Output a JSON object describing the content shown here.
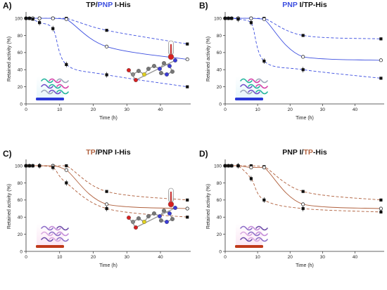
{
  "colors": {
    "blue": "#3d4fe0",
    "brown": "#b0603d",
    "black": "#111111",
    "protein_blue_base": "#2a38d8",
    "protein_red_base": "#c03a1a"
  },
  "chart_data": [
    {
      "panel": "A)",
      "type": "line",
      "title_segments": [
        {
          "text": "TP/",
          "color": "#111111"
        },
        {
          "text": "PNP",
          "color": "#3d4fe0"
        },
        {
          "text": " I-His",
          "color": "#111111"
        }
      ],
      "xlabel": "Time (h)",
      "ylabel": "Retained activity (%)",
      "xlim": [
        0,
        49
      ],
      "ylim": [
        0,
        105
      ],
      "xticks": [
        0,
        10,
        20,
        30,
        40
      ],
      "yticks": [
        0,
        20,
        40,
        60,
        80,
        100
      ],
      "fit_color": "#3d4fe0",
      "series": [
        {
          "marker": "filled-square",
          "style": "dash",
          "points": [
            [
              0,
              100
            ],
            [
              1,
              100
            ],
            [
              2,
              100
            ],
            [
              4,
              100
            ],
            [
              8,
              100
            ],
            [
              12,
              100
            ],
            [
              24,
              86
            ],
            [
              48,
              70
            ]
          ]
        },
        {
          "marker": "open-circle",
          "style": "solid",
          "points": [
            [
              0,
              100
            ],
            [
              1,
              100
            ],
            [
              2,
              100
            ],
            [
              4,
              100
            ],
            [
              8,
              100
            ],
            [
              12,
              99
            ],
            [
              24,
              67
            ],
            [
              48,
              52
            ]
          ]
        },
        {
          "marker": "filled-square",
          "style": "dash",
          "points": [
            [
              0,
              100
            ],
            [
              1,
              100
            ],
            [
              2,
              99
            ],
            [
              4,
              95
            ],
            [
              8,
              88
            ],
            [
              12,
              46
            ],
            [
              24,
              34
            ],
            [
              48,
              20
            ]
          ]
        }
      ],
      "inset": "thermometer-and-nucleoside",
      "protein_base_color": "#2a38d8"
    },
    {
      "panel": "B)",
      "type": "line",
      "title_segments": [
        {
          "text": "PNP",
          "color": "#3d4fe0"
        },
        {
          "text": " I/TP-His",
          "color": "#111111"
        }
      ],
      "xlabel": "Time (h)",
      "ylabel": "Retained activity (%)",
      "xlim": [
        0,
        49
      ],
      "ylim": [
        0,
        105
      ],
      "xticks": [
        0,
        10,
        20,
        30,
        40
      ],
      "yticks": [
        0,
        20,
        40,
        60,
        80,
        100
      ],
      "fit_color": "#3d4fe0",
      "series": [
        {
          "marker": "filled-square",
          "style": "dash",
          "points": [
            [
              0,
              100
            ],
            [
              1,
              100
            ],
            [
              2,
              100
            ],
            [
              4,
              100
            ],
            [
              8,
              100
            ],
            [
              12,
              100
            ],
            [
              24,
              80
            ],
            [
              48,
              76
            ]
          ]
        },
        {
          "marker": "open-circle",
          "style": "solid",
          "points": [
            [
              0,
              100
            ],
            [
              1,
              100
            ],
            [
              2,
              100
            ],
            [
              4,
              100
            ],
            [
              8,
              100
            ],
            [
              12,
              99
            ],
            [
              24,
              55
            ],
            [
              48,
              51
            ]
          ]
        },
        {
          "marker": "filled-square",
          "style": "dash",
          "points": [
            [
              0,
              100
            ],
            [
              1,
              100
            ],
            [
              2,
              100
            ],
            [
              4,
              99
            ],
            [
              8,
              95
            ],
            [
              12,
              50
            ],
            [
              24,
              40
            ],
            [
              48,
              30
            ]
          ]
        }
      ],
      "inset": null,
      "protein_base_color": "#2a38d8"
    },
    {
      "panel": "C)",
      "type": "line",
      "title_segments": [
        {
          "text": "TP",
          "color": "#b0603d"
        },
        {
          "text": "/PNP I-His",
          "color": "#111111"
        }
      ],
      "xlabel": "Time (h)",
      "ylabel": "Retained activity (%)",
      "xlim": [
        0,
        49
      ],
      "ylim": [
        0,
        105
      ],
      "xticks": [
        0,
        10,
        20,
        30,
        40
      ],
      "yticks": [
        0,
        20,
        40,
        60,
        80,
        100
      ],
      "fit_color": "#b0603d",
      "series": [
        {
          "marker": "filled-square",
          "style": "dash",
          "points": [
            [
              0,
              100
            ],
            [
              1,
              100
            ],
            [
              2,
              100
            ],
            [
              4,
              100
            ],
            [
              8,
              100
            ],
            [
              12,
              100
            ],
            [
              24,
              70
            ],
            [
              48,
              60
            ]
          ]
        },
        {
          "marker": "open-circle",
          "style": "solid",
          "points": [
            [
              0,
              100
            ],
            [
              1,
              100
            ],
            [
              2,
              100
            ],
            [
              4,
              100
            ],
            [
              8,
              100
            ],
            [
              12,
              95
            ],
            [
              24,
              55
            ],
            [
              48,
              50
            ]
          ]
        },
        {
          "marker": "filled-square",
          "style": "dash",
          "points": [
            [
              0,
              100
            ],
            [
              1,
              100
            ],
            [
              2,
              100
            ],
            [
              4,
              100
            ],
            [
              8,
              98
            ],
            [
              12,
              80
            ],
            [
              24,
              50
            ],
            [
              48,
              40
            ]
          ]
        }
      ],
      "inset": "thermometer-and-nucleoside",
      "protein_base_color": "#c03a1a"
    },
    {
      "panel": "D)",
      "type": "line",
      "title_segments": [
        {
          "text": "PNP I/",
          "color": "#111111"
        },
        {
          "text": "TP",
          "color": "#b0603d"
        },
        {
          "text": "-His",
          "color": "#111111"
        }
      ],
      "xlabel": "Time (h)",
      "ylabel": "Retained activity (%)",
      "xlim": [
        0,
        49
      ],
      "ylim": [
        0,
        105
      ],
      "xticks": [
        0,
        10,
        20,
        30,
        40
      ],
      "yticks": [
        0,
        20,
        40,
        60,
        80,
        100
      ],
      "fit_color": "#b0603d",
      "series": [
        {
          "marker": "filled-square",
          "style": "dash",
          "points": [
            [
              0,
              100
            ],
            [
              1,
              100
            ],
            [
              2,
              100
            ],
            [
              4,
              100
            ],
            [
              8,
              100
            ],
            [
              12,
              99
            ],
            [
              24,
              70
            ],
            [
              48,
              60
            ]
          ]
        },
        {
          "marker": "open-circle",
          "style": "solid",
          "points": [
            [
              0,
              100
            ],
            [
              1,
              100
            ],
            [
              2,
              100
            ],
            [
              4,
              100
            ],
            [
              8,
              98
            ],
            [
              12,
              98
            ],
            [
              24,
              55
            ],
            [
              48,
              50
            ]
          ]
        },
        {
          "marker": "filled-square",
          "style": "dash",
          "points": [
            [
              0,
              100
            ],
            [
              1,
              100
            ],
            [
              2,
              100
            ],
            [
              4,
              100
            ],
            [
              8,
              85
            ],
            [
              12,
              60
            ],
            [
              24,
              50
            ],
            [
              48,
              46
            ]
          ]
        }
      ],
      "inset": null,
      "protein_base_color": "#c03a1a"
    }
  ]
}
